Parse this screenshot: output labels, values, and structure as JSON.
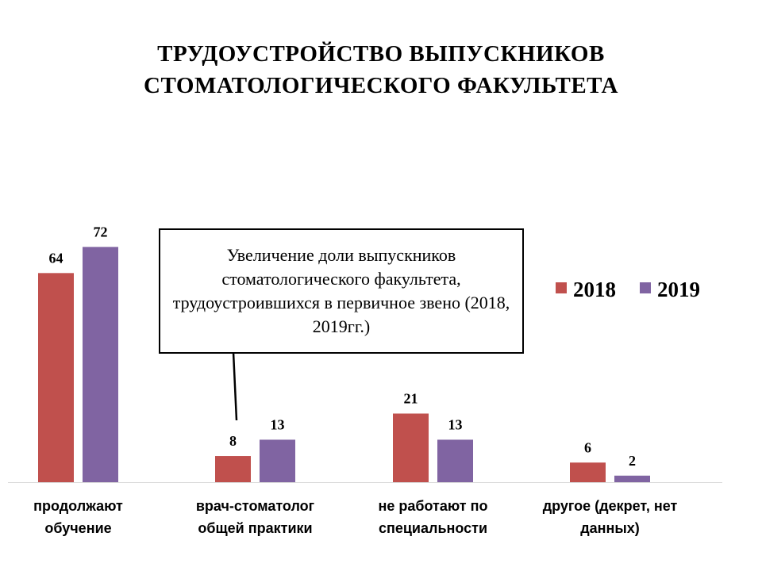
{
  "title_lines": [
    "ТРУДОУСТРОЙСТВО ВЫПУСКНИКОВ",
    "СТОМАТОЛОГИЧЕСКОГО ФАКУЛЬТЕТА"
  ],
  "callout_text": "Увеличение  доли выпускников стоматологического факультета, трудоустроившихся в первичное звено (2018, 2019гг.)",
  "colors": {
    "2018": "#c0504d",
    "2019": "#8064a2"
  },
  "chart_data": {
    "type": "bar",
    "title": "ТРУДОУСТРОЙСТВО ВЫПУСКНИКОВ СТОМАТОЛОГИЧЕСКОГО ФАКУЛЬТЕТА",
    "categories": [
      [
        "продолжают",
        "обучение"
      ],
      [
        "врач-стоматолог",
        "общей практики"
      ],
      [
        "не работают по",
        "специальности"
      ],
      [
        "другое (декрет, нет",
        "данных)"
      ]
    ],
    "series": [
      {
        "name": "2018",
        "values": [
          64,
          8,
          21,
          6
        ]
      },
      {
        "name": "2019",
        "values": [
          72,
          13,
          13,
          2
        ]
      }
    ],
    "ylim": [
      0,
      80
    ],
    "grid": false,
    "legend": "right"
  }
}
